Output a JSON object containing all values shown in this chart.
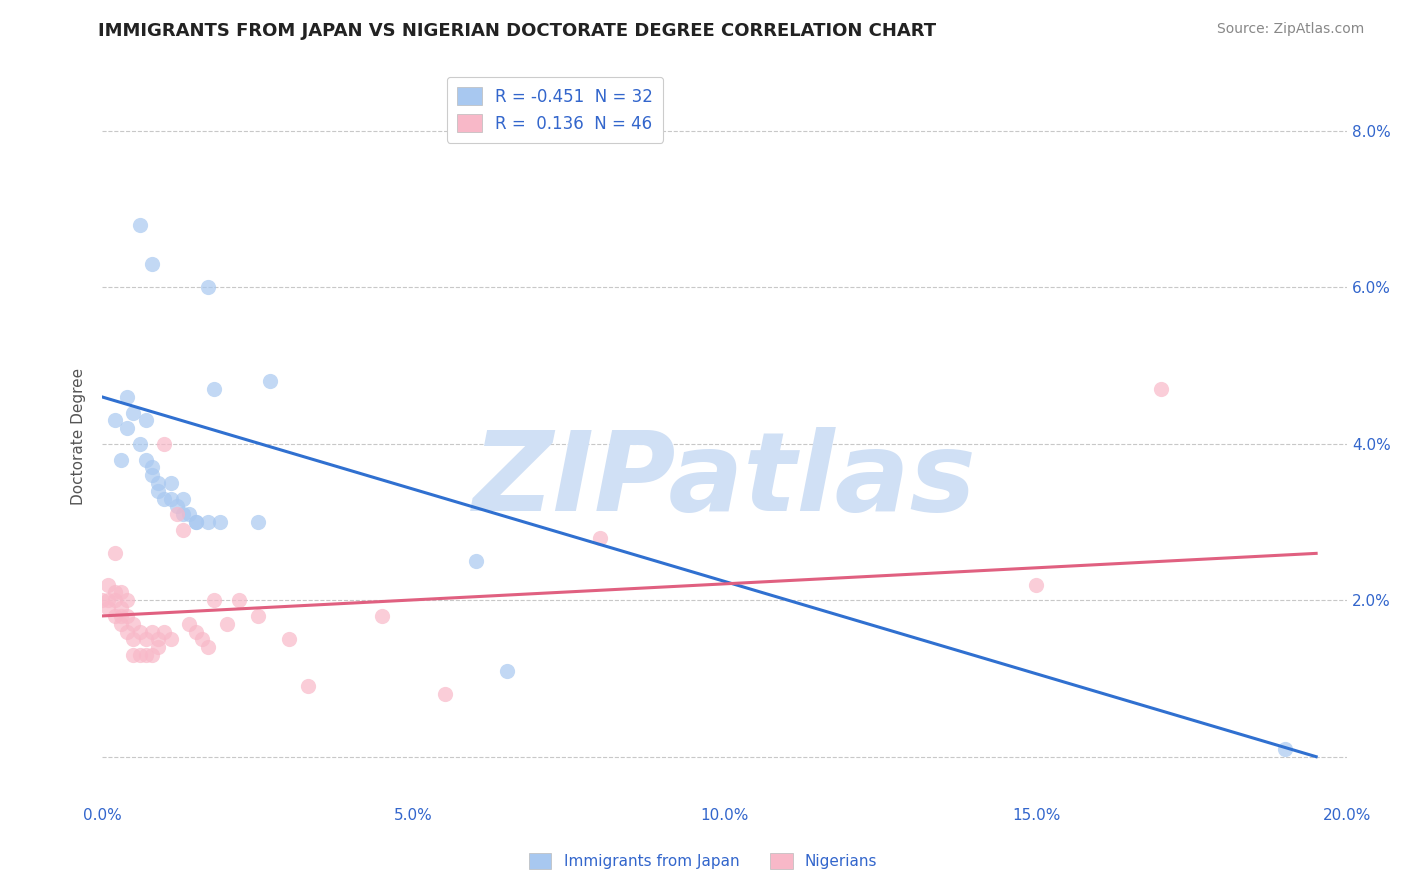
{
  "title": "IMMIGRANTS FROM JAPAN VS NIGERIAN DOCTORATE DEGREE CORRELATION CHART",
  "source": "Source: ZipAtlas.com",
  "ylabel": "Doctorate Degree",
  "xlim": [
    0.0,
    0.2
  ],
  "ylim": [
    -0.006,
    0.088
  ],
  "xticks": [
    0.0,
    0.05,
    0.1,
    0.15,
    0.2
  ],
  "xticklabels": [
    "0.0%",
    "5.0%",
    "10.0%",
    "15.0%",
    "20.0%"
  ],
  "yticks": [
    0.0,
    0.02,
    0.04,
    0.06,
    0.08
  ],
  "yticklabels_right": [
    "",
    "2.0%",
    "4.0%",
    "6.0%",
    "8.0%"
  ],
  "blue_R": -0.451,
  "blue_N": 32,
  "pink_R": 0.136,
  "pink_N": 46,
  "blue_dot_color": "#a8c8f0",
  "pink_dot_color": "#f8b8c8",
  "blue_line_color": "#3070d0",
  "pink_line_color": "#e06080",
  "watermark": "ZIPatlas",
  "watermark_color": "#d0e0f5",
  "background_color": "#ffffff",
  "grid_color": "#c8c8c8",
  "title_color": "#222222",
  "axis_label_color": "#3366cc",
  "legend_label_color": "#3366cc",
  "japan_points": [
    [
      0.002,
      0.043
    ],
    [
      0.003,
      0.038
    ],
    [
      0.004,
      0.042
    ],
    [
      0.004,
      0.046
    ],
    [
      0.005,
      0.044
    ],
    [
      0.006,
      0.04
    ],
    [
      0.007,
      0.038
    ],
    [
      0.007,
      0.043
    ],
    [
      0.008,
      0.036
    ],
    [
      0.008,
      0.037
    ],
    [
      0.009,
      0.035
    ],
    [
      0.009,
      0.034
    ],
    [
      0.01,
      0.033
    ],
    [
      0.011,
      0.035
    ],
    [
      0.011,
      0.033
    ],
    [
      0.012,
      0.032
    ],
    [
      0.013,
      0.033
    ],
    [
      0.013,
      0.031
    ],
    [
      0.014,
      0.031
    ],
    [
      0.015,
      0.03
    ],
    [
      0.015,
      0.03
    ],
    [
      0.017,
      0.03
    ],
    [
      0.018,
      0.047
    ],
    [
      0.019,
      0.03
    ],
    [
      0.006,
      0.068
    ],
    [
      0.008,
      0.063
    ],
    [
      0.017,
      0.06
    ],
    [
      0.025,
      0.03
    ],
    [
      0.027,
      0.048
    ],
    [
      0.06,
      0.025
    ],
    [
      0.065,
      0.011
    ],
    [
      0.19,
      0.001
    ]
  ],
  "nigerian_points": [
    [
      0.0,
      0.02
    ],
    [
      0.001,
      0.022
    ],
    [
      0.001,
      0.02
    ],
    [
      0.001,
      0.019
    ],
    [
      0.002,
      0.026
    ],
    [
      0.002,
      0.021
    ],
    [
      0.002,
      0.02
    ],
    [
      0.002,
      0.018
    ],
    [
      0.003,
      0.021
    ],
    [
      0.003,
      0.019
    ],
    [
      0.003,
      0.018
    ],
    [
      0.003,
      0.017
    ],
    [
      0.004,
      0.02
    ],
    [
      0.004,
      0.018
    ],
    [
      0.004,
      0.016
    ],
    [
      0.005,
      0.017
    ],
    [
      0.005,
      0.015
    ],
    [
      0.005,
      0.013
    ],
    [
      0.006,
      0.016
    ],
    [
      0.006,
      0.013
    ],
    [
      0.007,
      0.015
    ],
    [
      0.007,
      0.013
    ],
    [
      0.008,
      0.016
    ],
    [
      0.008,
      0.013
    ],
    [
      0.009,
      0.015
    ],
    [
      0.009,
      0.014
    ],
    [
      0.01,
      0.016
    ],
    [
      0.01,
      0.04
    ],
    [
      0.011,
      0.015
    ],
    [
      0.012,
      0.031
    ],
    [
      0.013,
      0.029
    ],
    [
      0.014,
      0.017
    ],
    [
      0.015,
      0.016
    ],
    [
      0.016,
      0.015
    ],
    [
      0.017,
      0.014
    ],
    [
      0.018,
      0.02
    ],
    [
      0.02,
      0.017
    ],
    [
      0.022,
      0.02
    ],
    [
      0.025,
      0.018
    ],
    [
      0.03,
      0.015
    ],
    [
      0.033,
      0.009
    ],
    [
      0.045,
      0.018
    ],
    [
      0.055,
      0.008
    ],
    [
      0.08,
      0.028
    ],
    [
      0.15,
      0.022
    ],
    [
      0.17,
      0.047
    ]
  ],
  "blue_line_x": [
    0.0,
    0.195
  ],
  "blue_line_y": [
    0.046,
    0.0
  ],
  "pink_line_x": [
    0.0,
    0.195
  ],
  "pink_line_y": [
    0.018,
    0.026
  ],
  "dot_size": 120,
  "dot_alpha": 0.7
}
